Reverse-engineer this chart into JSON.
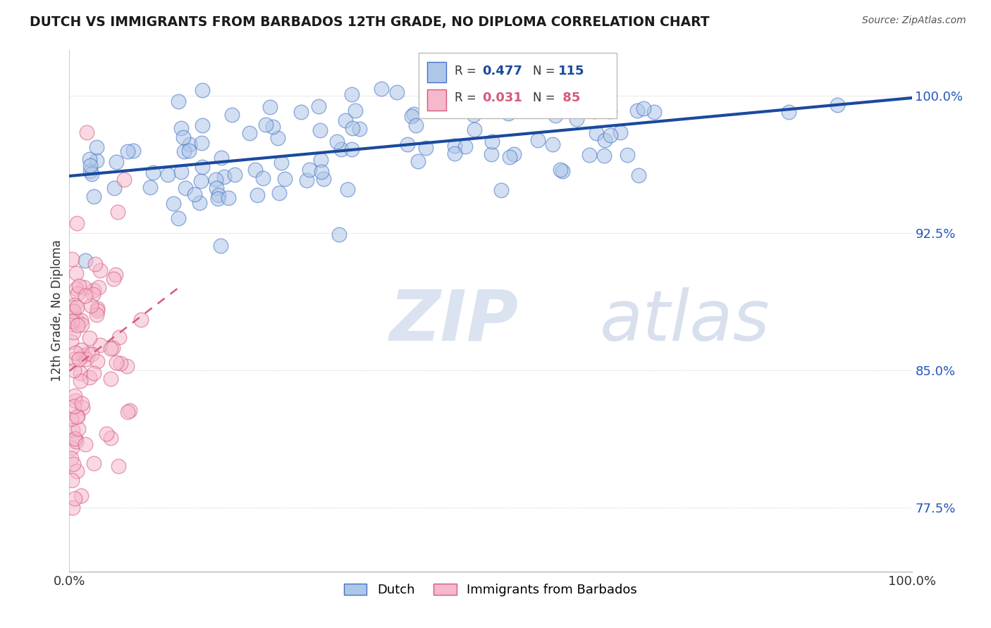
{
  "title": "DUTCH VS IMMIGRANTS FROM BARBADOS 12TH GRADE, NO DIPLOMA CORRELATION CHART",
  "source": "Source: ZipAtlas.com",
  "ylabel": "12th Grade, No Diploma",
  "watermark_zip": "ZIP",
  "watermark_atlas": "atlas",
  "xlim": [
    0.0,
    1.0
  ],
  "ylim": [
    0.74,
    1.025
  ],
  "ytick_vals": [
    0.775,
    0.85,
    0.925,
    1.0
  ],
  "ytick_labels": [
    "77.5%",
    "85.0%",
    "92.5%",
    "100.0%"
  ],
  "xtick_vals": [
    0.0,
    1.0
  ],
  "xtick_labels": [
    "0.0%",
    "100.0%"
  ],
  "dutch_color": "#aec6e8",
  "dutch_edge_color": "#4472c4",
  "barbados_color": "#f5b8cc",
  "barbados_edge_color": "#d45b7a",
  "trendline_dutch_color": "#1a4a9e",
  "trendline_barbados_color": "#d45b7a",
  "background_color": "#ffffff",
  "grid_color": "#cccccc",
  "dutch_R": 0.477,
  "dutch_N": 115,
  "barbados_R": 0.031,
  "barbados_N": 85,
  "title_color": "#1a1a1a",
  "source_color": "#555555",
  "ylabel_color": "#333333",
  "yticklabel_color": "#2255bb",
  "legend_box_color": "#dddddd"
}
